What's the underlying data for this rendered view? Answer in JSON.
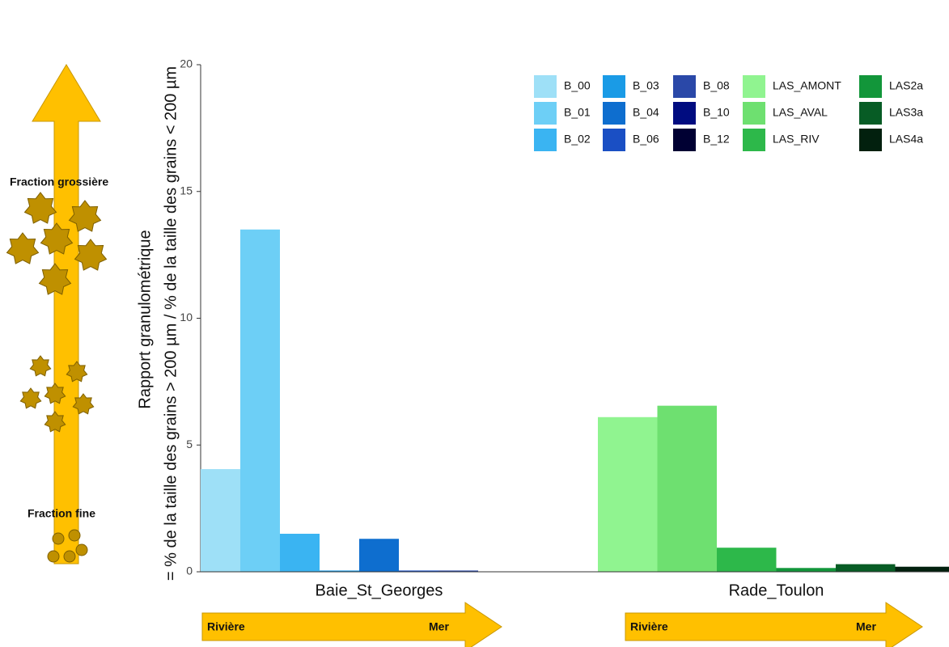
{
  "chart_data": {
    "type": "bar",
    "y_label": [
      "Rapport granulométrique",
      "= % de la taille des grains > 200 µm / % de la taille des grains < 200 µm"
    ],
    "categories": [
      "Baie_St_Georges",
      "Rade_Toulon"
    ],
    "series": [
      {
        "name": "B_00",
        "color": "#9ee0f7",
        "values": [
          4.05,
          null
        ]
      },
      {
        "name": "B_01",
        "color": "#6dcff6",
        "values": [
          13.5,
          null
        ]
      },
      {
        "name": "B_02",
        "color": "#3ab4f2",
        "values": [
          1.5,
          null
        ]
      },
      {
        "name": "B_03",
        "color": "#1a9be6",
        "values": [
          0.05,
          null
        ]
      },
      {
        "name": "B_04",
        "color": "#0e6ecf",
        "values": [
          1.3,
          null
        ]
      },
      {
        "name": "B_06",
        "color": "#1a4fc4",
        "values": [
          0.05,
          null
        ]
      },
      {
        "name": "B_08",
        "color": "#2a48a8",
        "values": [
          0.05,
          null
        ]
      },
      {
        "name": "B_10",
        "color": "#000c80",
        "values": [
          0,
          null
        ]
      },
      {
        "name": "B_12",
        "color": "#000033",
        "values": [
          0,
          null
        ]
      },
      {
        "name": "LAS_AMONT",
        "color": "#90f490",
        "values": [
          null,
          6.1
        ]
      },
      {
        "name": "LAS_AVAL",
        "color": "#6ee070",
        "values": [
          null,
          6.55
        ]
      },
      {
        "name": "LAS_RIV",
        "color": "#2db84a",
        "values": [
          null,
          0.95
        ]
      },
      {
        "name": "LAS2a",
        "color": "#12963a",
        "values": [
          null,
          0.15
        ]
      },
      {
        "name": "LAS3a",
        "color": "#075c25",
        "values": [
          null,
          0.3
        ]
      },
      {
        "name": "LAS4a",
        "color": "#02200e",
        "values": [
          null,
          0.2
        ]
      }
    ],
    "ylim": [
      0,
      20
    ],
    "yticks": [
      0,
      5,
      10,
      15,
      20
    ],
    "annotations": [
      "Fraction grossière",
      "Fraction fine",
      "Rivière",
      "Mer",
      "Rivière",
      "Mer"
    ]
  }
}
